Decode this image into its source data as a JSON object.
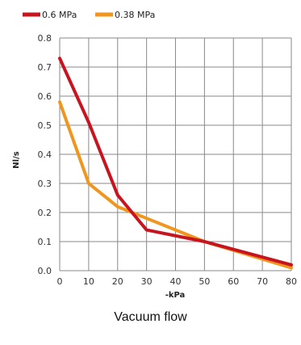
{
  "caption": "Vacuum flow",
  "chart_data": {
    "type": "line",
    "title": "",
    "xlabel": "-kPa",
    "ylabel": "Nl/s",
    "x": [
      0,
      10,
      20,
      30,
      40,
      50,
      60,
      70,
      80
    ],
    "xlim": [
      0,
      80
    ],
    "ylim": [
      0.0,
      0.8
    ],
    "xticks": [
      "0",
      "10",
      "20",
      "30",
      "40",
      "50",
      "60",
      "70",
      "80"
    ],
    "yticks": [
      "0.0",
      "0.1",
      "0.2",
      "0.3",
      "0.4",
      "0.5",
      "0.6",
      "0.7",
      "0.8"
    ],
    "grid": true,
    "legend_position": "top",
    "series": [
      {
        "name": "0.6 MPa",
        "color": "#c8141e",
        "points": [
          [
            0,
            0.73
          ],
          [
            10,
            0.51
          ],
          [
            20,
            0.26
          ],
          [
            30,
            0.14
          ],
          [
            50,
            0.1
          ],
          [
            80,
            0.02
          ]
        ]
      },
      {
        "name": "0.38 MPa",
        "color": "#f0961e",
        "points": [
          [
            0,
            0.58
          ],
          [
            10,
            0.3
          ],
          [
            20,
            0.22
          ],
          [
            30,
            0.18
          ],
          [
            50,
            0.1
          ],
          [
            80,
            0.01
          ]
        ]
      }
    ]
  }
}
